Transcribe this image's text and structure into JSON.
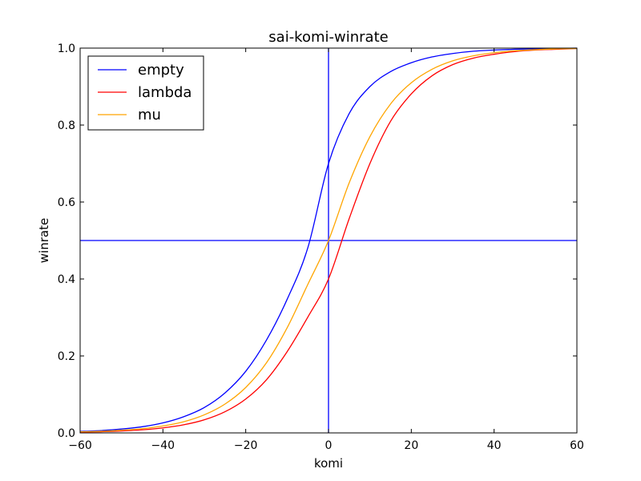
{
  "chart_data": {
    "type": "line",
    "title": "sai-komi-winrate",
    "xlabel": "komi",
    "ylabel": "winrate",
    "xlim": [
      -60,
      60
    ],
    "ylim": [
      0.0,
      1.0
    ],
    "xticks": [
      -60,
      -40,
      -20,
      0,
      20,
      40,
      60
    ],
    "xtick_labels": [
      "−60",
      "−40",
      "−20",
      "0",
      "20",
      "40",
      "60"
    ],
    "yticks": [
      0.0,
      0.2,
      0.4,
      0.6,
      0.8,
      1.0
    ],
    "ytick_labels": [
      "0.0",
      "0.2",
      "0.4",
      "0.6",
      "0.8",
      "1.0"
    ],
    "grid": false,
    "legend_position": "top-left",
    "x": [
      -60,
      -55,
      -50,
      -45,
      -40,
      -35,
      -30,
      -25,
      -20,
      -15,
      -10,
      -5,
      0,
      5,
      10,
      15,
      20,
      25,
      30,
      35,
      40,
      45,
      50,
      55,
      60
    ],
    "series": [
      {
        "name": "empty",
        "color": "#0000ff",
        "values": [
          0.004,
          0.006,
          0.01,
          0.016,
          0.026,
          0.042,
          0.066,
          0.104,
          0.16,
          0.241,
          0.347,
          0.481,
          0.7,
          0.83,
          0.9,
          0.939,
          0.962,
          0.977,
          0.986,
          0.992,
          0.995,
          0.997,
          0.998,
          0.999,
          1.0
        ]
      },
      {
        "name": "lambda",
        "color": "#ff0000",
        "values": [
          0.002,
          0.003,
          0.005,
          0.008,
          0.013,
          0.021,
          0.034,
          0.055,
          0.088,
          0.138,
          0.211,
          0.301,
          0.4,
          0.557,
          0.7,
          0.81,
          0.881,
          0.928,
          0.957,
          0.974,
          0.984,
          0.991,
          0.995,
          0.997,
          0.999
        ]
      },
      {
        "name": "mu",
        "color": "#ffa500",
        "values": [
          0.003,
          0.004,
          0.007,
          0.011,
          0.018,
          0.029,
          0.047,
          0.075,
          0.118,
          0.182,
          0.273,
          0.386,
          0.5,
          0.65,
          0.77,
          0.855,
          0.91,
          0.945,
          0.967,
          0.98,
          0.988,
          0.993,
          0.996,
          0.998,
          0.999
        ]
      }
    ],
    "reference_lines": [
      {
        "orientation": "horizontal",
        "value": 0.5,
        "color": "#0000ff"
      },
      {
        "orientation": "vertical",
        "value": 0,
        "color": "#0000ff"
      }
    ]
  }
}
